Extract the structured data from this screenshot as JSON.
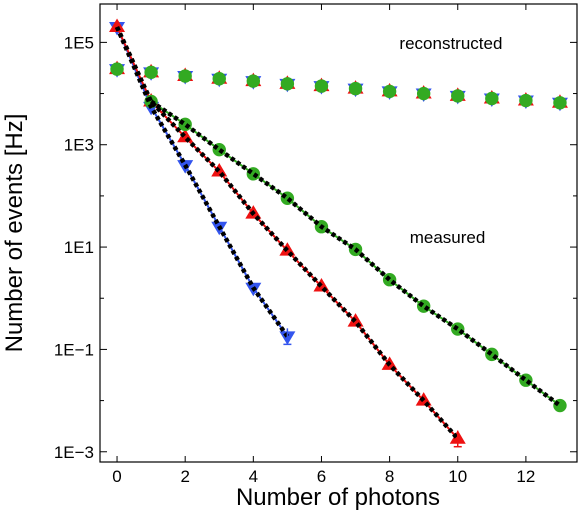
{
  "chart_data": {
    "type": "scatter",
    "xlabel": "Number of photons",
    "ylabel": "Number of events [Hz]",
    "xlim": [
      -0.5,
      13.5
    ],
    "ylim_log10": [
      -3.2,
      5.75
    ],
    "y_scale": "log",
    "x_ticks": [
      0,
      2,
      4,
      6,
      8,
      10,
      12
    ],
    "y_ticks": [
      {
        "value": 100000,
        "label": "1E5"
      },
      {
        "value": 1000,
        "label": "1E3"
      },
      {
        "value": 10,
        "label": "1E1"
      },
      {
        "value": 0.1,
        "label": "1E−1"
      },
      {
        "value": 0.001,
        "label": "1E−3"
      }
    ],
    "grid": false,
    "annotations": [
      {
        "text": "reconstructed",
        "x": 9.8,
        "y": 75000
      },
      {
        "text": "measured",
        "x": 9.7,
        "y": 12
      }
    ],
    "series": [
      {
        "group": "measured",
        "marker": "triangle-down",
        "color": "#3355ee",
        "x": [
          0,
          1,
          2,
          3,
          4,
          5
        ],
        "y": [
          200000,
          5500,
          400,
          25,
          1.6,
          0.18
        ],
        "fit_color": "#000000"
      },
      {
        "group": "measured",
        "marker": "triangle-up",
        "color": "#ee1111",
        "x": [
          0,
          1,
          2,
          3,
          4,
          5,
          6,
          7,
          8,
          9,
          10
        ],
        "y": [
          200000,
          7000,
          1400,
          300,
          45,
          8.5,
          1.7,
          0.35,
          0.05,
          0.01,
          0.0018
        ],
        "fit_color": "#000000"
      },
      {
        "group": "measured",
        "marker": "circle",
        "color": "#33aa22",
        "x": [
          1,
          2,
          3,
          4,
          5,
          6,
          7,
          8,
          9,
          10,
          11,
          12,
          13
        ],
        "y": [
          7000,
          2500,
          800,
          270,
          90,
          25,
          9,
          2.3,
          0.7,
          0.25,
          0.08,
          0.025,
          0.008
        ],
        "fit_color": "#000000"
      },
      {
        "group": "reconstructed",
        "marker": "triangle-down",
        "color": "#3355ee",
        "x": [
          0,
          1,
          2,
          3,
          4,
          5,
          6,
          7,
          8,
          9,
          10,
          11,
          12,
          13
        ],
        "y": [
          30000,
          26000,
          22000,
          19500,
          17500,
          15500,
          14000,
          12500,
          11000,
          10000,
          9000,
          8000,
          7300,
          6600
        ]
      },
      {
        "group": "reconstructed",
        "marker": "triangle-up",
        "color": "#ee1111",
        "x": [
          0,
          1,
          2,
          3,
          4,
          5,
          6,
          7,
          8,
          9,
          10,
          11,
          12,
          13
        ],
        "y": [
          30000,
          26000,
          22000,
          19500,
          17500,
          15500,
          14000,
          12500,
          11000,
          10000,
          9000,
          8000,
          7300,
          6600
        ]
      },
      {
        "group": "reconstructed",
        "marker": "circle",
        "color": "#33aa22",
        "x": [
          0,
          1,
          2,
          3,
          4,
          5,
          6,
          7,
          8,
          9,
          10,
          11,
          12,
          13
        ],
        "y": [
          30000,
          26000,
          22000,
          19500,
          17500,
          15500,
          14000,
          12500,
          11000,
          10000,
          9000,
          8000,
          7300,
          6600
        ]
      }
    ]
  }
}
